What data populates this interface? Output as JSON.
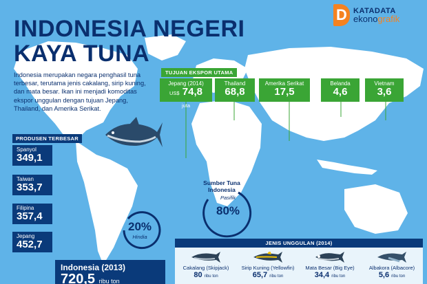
{
  "header": {
    "title_line1": "INDONESIA NEGERI",
    "title_line2": "KAYA TUNA"
  },
  "logo": {
    "mark": "D",
    "line1": "KATADATA",
    "line2_a": "ekono",
    "line2_b": "grafik"
  },
  "intro": "Indonesia merupakan negara penghasil tuna terbesar, terutama jenis cakalang, sirip kuning, dan mata besar. Ikan ini menjadi komoditas ekspor unggulan dengan tujuan Jepang, Thailand, dan Amerika Serikat.",
  "exports": {
    "heading": "TUJUAN EKSPOR UTAMA",
    "items": [
      {
        "country": "Jepang (2014)",
        "currency": "US$",
        "value": "74,8",
        "unit": "juta"
      },
      {
        "country": "Thailand",
        "value": "68,8"
      },
      {
        "country": "Amerika Serikat",
        "value": "17,5"
      },
      {
        "country": "Belanda",
        "value": "4,6"
      },
      {
        "country": "Vietnam",
        "value": "3,6"
      }
    ]
  },
  "producers": {
    "heading": "PRODUSEN TERBESAR",
    "items": [
      {
        "country": "Spanyol",
        "value": "349,1"
      },
      {
        "country": "Taiwan",
        "value": "353,7"
      },
      {
        "country": "Filipina",
        "value": "357,4"
      },
      {
        "country": "Jepang",
        "value": "452,7"
      }
    ],
    "indonesia": {
      "country": "Indonesia (2013)",
      "value": "720,5",
      "unit": "ribu ton"
    }
  },
  "sources": {
    "heading": "Sumber Tuna Indonesia",
    "pacific_label": "Pasifik",
    "pacific_pct": "80%",
    "hindia_label": "Hindia",
    "hindia_pct": "20%"
  },
  "species": {
    "heading": "JENIS UNGGULAN (2014)",
    "items": [
      {
        "name": "Cakalang (Skipjack)",
        "value": "80",
        "unit": "ribu ton"
      },
      {
        "name": "Sirip Kuning (Yellowfin)",
        "value": "65,7",
        "unit": "ribu ton"
      },
      {
        "name": "Mata Besar (Big Eye)",
        "value": "34,4",
        "unit": "ribu ton"
      },
      {
        "name": "Albakora (Albacore)",
        "value": "5,6",
        "unit": "ribu ton"
      }
    ]
  },
  "colors": {
    "background": "#5fb3e8",
    "land": "#ffffff",
    "navy": "#0a3a7a",
    "green": "#3aa535",
    "orange": "#f58220"
  },
  "icons": [
    "tuna-illustration",
    "world-map"
  ]
}
